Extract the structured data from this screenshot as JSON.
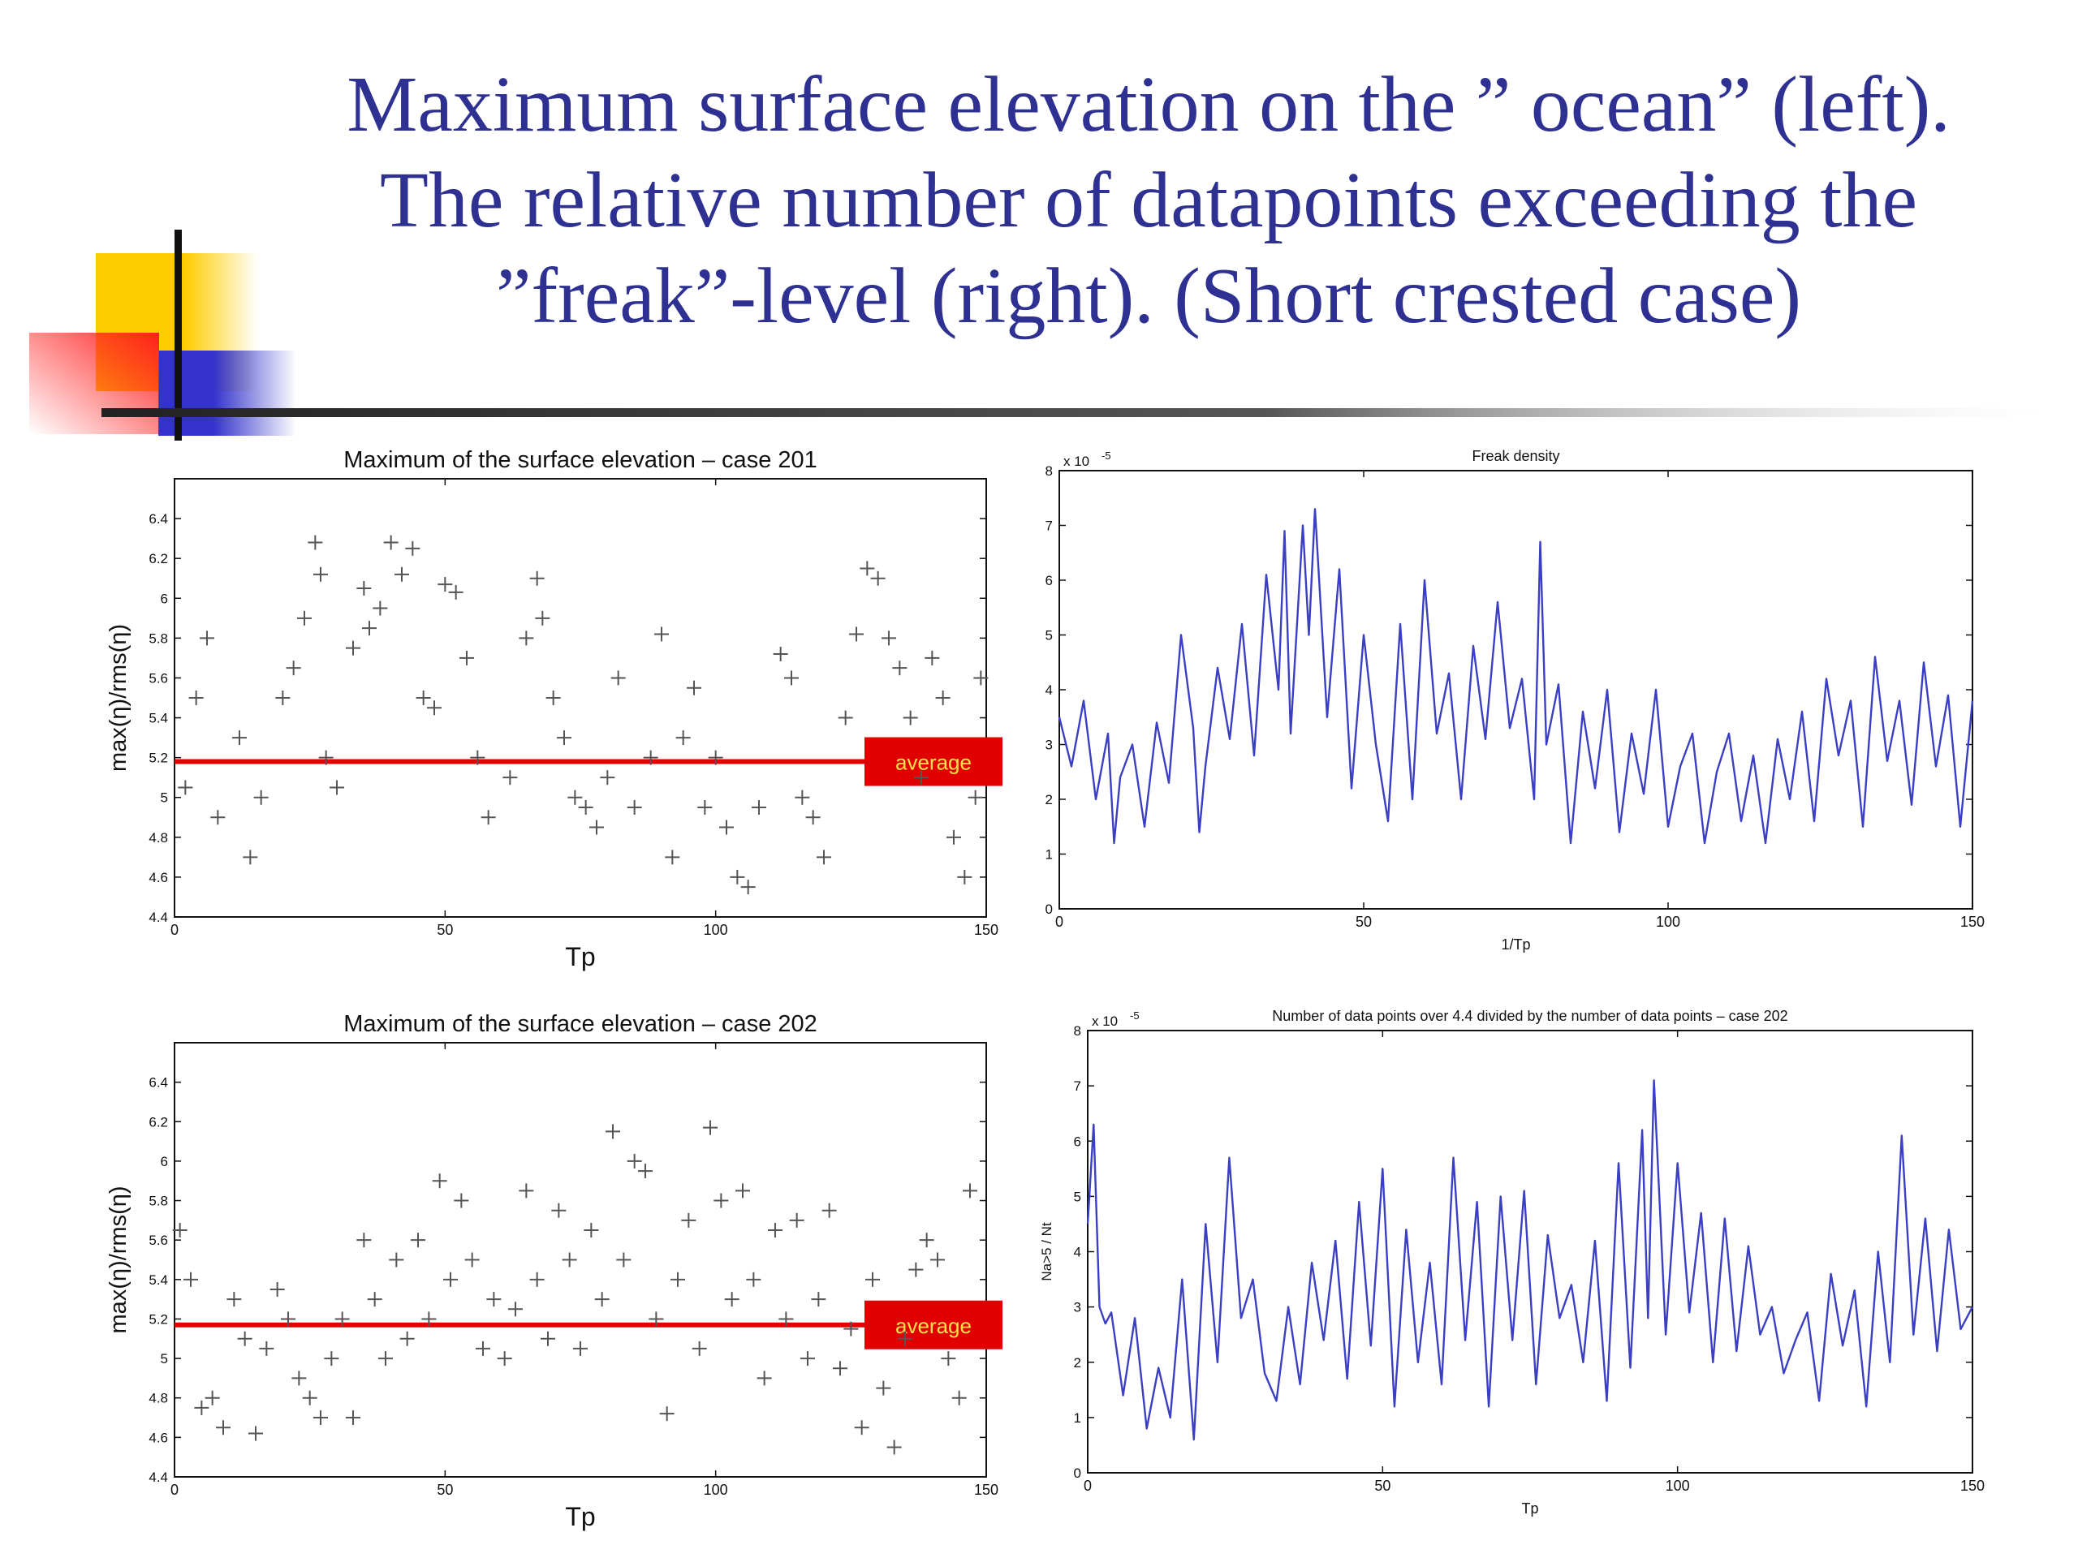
{
  "slide": {
    "title_lines": [
      "Maximum surface elevation on the ” ocean” (left).",
      "The relative number of datapoints exceeding the",
      "”freak”-level (right).   (Short crested case)"
    ],
    "title_color": "#2e3192"
  },
  "chart_data": [
    {
      "type": "scatter",
      "title": "Maximum of the surface elevation – case 201",
      "xlabel": "Tp",
      "ylabel": "max(η)/rms(η)",
      "xlim": [
        0,
        150
      ],
      "ylim": [
        4.4,
        6.6
      ],
      "xticks": [
        0,
        50,
        100,
        150
      ],
      "yticks": [
        4.4,
        4.6,
        4.8,
        5.0,
        5.2,
        5.4,
        5.6,
        5.8,
        6.0,
        6.2,
        6.4
      ],
      "ytick_labels": [
        "4.4",
        "4.6",
        "4.8",
        "5",
        "5.2",
        "5.4",
        "5.6",
        "5.8",
        "6",
        "6.2",
        "6.4"
      ],
      "marker": "+",
      "marker_color": "#555555",
      "average": 5.18,
      "average_color": "#e00000",
      "average_label": "average",
      "average_label_color": "#ffe14d",
      "points": [
        [
          2,
          5.05
        ],
        [
          4,
          5.5
        ],
        [
          6,
          5.8
        ],
        [
          8,
          4.9
        ],
        [
          12,
          5.3
        ],
        [
          14,
          4.7
        ],
        [
          16,
          5.0
        ],
        [
          20,
          5.5
        ],
        [
          22,
          5.65
        ],
        [
          24,
          5.9
        ],
        [
          26,
          6.28
        ],
        [
          27,
          6.12
        ],
        [
          28,
          5.2
        ],
        [
          30,
          5.05
        ],
        [
          33,
          5.75
        ],
        [
          35,
          6.05
        ],
        [
          36,
          5.85
        ],
        [
          38,
          5.95
        ],
        [
          40,
          6.28
        ],
        [
          42,
          6.12
        ],
        [
          44,
          6.25
        ],
        [
          46,
          5.5
        ],
        [
          48,
          5.45
        ],
        [
          50,
          6.07
        ],
        [
          52,
          6.03
        ],
        [
          54,
          5.7
        ],
        [
          56,
          5.2
        ],
        [
          58,
          4.9
        ],
        [
          62,
          5.1
        ],
        [
          65,
          5.8
        ],
        [
          67,
          6.1
        ],
        [
          68,
          5.9
        ],
        [
          70,
          5.5
        ],
        [
          72,
          5.3
        ],
        [
          74,
          5.0
        ],
        [
          76,
          4.95
        ],
        [
          78,
          4.85
        ],
        [
          80,
          5.1
        ],
        [
          82,
          5.6
        ],
        [
          85,
          4.95
        ],
        [
          88,
          5.2
        ],
        [
          90,
          5.82
        ],
        [
          92,
          4.7
        ],
        [
          94,
          5.3
        ],
        [
          96,
          5.55
        ],
        [
          98,
          4.95
        ],
        [
          100,
          5.2
        ],
        [
          102,
          4.85
        ],
        [
          104,
          4.6
        ],
        [
          106,
          4.55
        ],
        [
          108,
          4.95
        ],
        [
          112,
          5.72
        ],
        [
          114,
          5.6
        ],
        [
          116,
          5.0
        ],
        [
          118,
          4.9
        ],
        [
          120,
          4.7
        ],
        [
          124,
          5.4
        ],
        [
          126,
          5.82
        ],
        [
          128,
          6.15
        ],
        [
          130,
          6.1
        ],
        [
          132,
          5.8
        ],
        [
          134,
          5.65
        ],
        [
          136,
          5.4
        ],
        [
          138,
          5.1
        ],
        [
          140,
          5.7
        ],
        [
          142,
          5.5
        ],
        [
          144,
          4.8
        ],
        [
          146,
          4.6
        ],
        [
          148,
          5.0
        ],
        [
          149,
          5.6
        ]
      ]
    },
    {
      "type": "line",
      "title": "Freak density",
      "xlabel": "1/Tp",
      "ylabel": "",
      "xlim": [
        0,
        150
      ],
      "ylim": [
        0,
        8
      ],
      "xticks": [
        0,
        50,
        100,
        150
      ],
      "yticks": [
        0,
        1,
        2,
        3,
        4,
        5,
        6,
        7,
        8
      ],
      "exponent_label": "x 10",
      "exponent_power": "-5",
      "line_color": "#3b3fc4",
      "x": [
        0,
        2,
        4,
        6,
        8,
        9,
        10,
        12,
        14,
        16,
        18,
        20,
        22,
        23,
        24,
        26,
        28,
        30,
        32,
        34,
        36,
        37,
        38,
        40,
        41,
        42,
        44,
        46,
        48,
        50,
        52,
        54,
        56,
        58,
        60,
        62,
        64,
        66,
        68,
        70,
        72,
        74,
        76,
        78,
        79,
        80,
        82,
        84,
        86,
        88,
        90,
        92,
        94,
        96,
        98,
        100,
        102,
        104,
        106,
        108,
        110,
        112,
        114,
        116,
        118,
        120,
        122,
        124,
        126,
        128,
        130,
        132,
        134,
        136,
        138,
        140,
        142,
        144,
        146,
        148,
        150
      ],
      "y": [
        3.5,
        2.6,
        3.8,
        2.0,
        3.2,
        1.2,
        2.4,
        3.0,
        1.5,
        3.4,
        2.3,
        5.0,
        3.3,
        1.4,
        2.6,
        4.4,
        3.1,
        5.2,
        2.8,
        6.1,
        4.0,
        6.9,
        3.2,
        7.0,
        5.0,
        7.3,
        3.5,
        6.2,
        2.2,
        5.0,
        3.0,
        1.6,
        5.2,
        2.0,
        6.0,
        3.2,
        4.3,
        2.0,
        4.8,
        3.1,
        5.6,
        3.3,
        4.2,
        2.0,
        6.7,
        3.0,
        4.1,
        1.2,
        3.6,
        2.2,
        4.0,
        1.4,
        3.2,
        2.1,
        4.0,
        1.5,
        2.6,
        3.2,
        1.2,
        2.5,
        3.2,
        1.6,
        2.8,
        1.2,
        3.1,
        2.0,
        3.6,
        1.6,
        4.2,
        2.8,
        3.8,
        1.5,
        4.6,
        2.7,
        3.8,
        1.9,
        4.5,
        2.6,
        3.9,
        1.5,
        3.8
      ]
    },
    {
      "type": "scatter",
      "title": "Maximum of the surface elevation – case 202",
      "xlabel": "Tp",
      "ylabel": "max(η)/rms(η)",
      "xlim": [
        0,
        150
      ],
      "ylim": [
        4.4,
        6.6
      ],
      "xticks": [
        0,
        50,
        100,
        150
      ],
      "yticks": [
        4.4,
        4.6,
        4.8,
        5.0,
        5.2,
        5.4,
        5.6,
        5.8,
        6.0,
        6.2,
        6.4
      ],
      "ytick_labels": [
        "4.4",
        "4.6",
        "4.8",
        "5",
        "5.2",
        "5.4",
        "5.6",
        "5.8",
        "6",
        "6.2",
        "6.4"
      ],
      "marker": "+",
      "marker_color": "#555555",
      "average": 5.17,
      "average_color": "#e00000",
      "average_label": "average",
      "average_label_color": "#ffe14d",
      "points": [
        [
          1,
          5.65
        ],
        [
          3,
          5.4
        ],
        [
          5,
          4.75
        ],
        [
          7,
          4.8
        ],
        [
          9,
          4.65
        ],
        [
          11,
          5.3
        ],
        [
          13,
          5.1
        ],
        [
          15,
          4.62
        ],
        [
          17,
          5.05
        ],
        [
          19,
          5.35
        ],
        [
          21,
          5.2
        ],
        [
          23,
          4.9
        ],
        [
          25,
          4.8
        ],
        [
          27,
          4.7
        ],
        [
          29,
          5.0
        ],
        [
          31,
          5.2
        ],
        [
          33,
          4.7
        ],
        [
          35,
          5.6
        ],
        [
          37,
          5.3
        ],
        [
          39,
          5.0
        ],
        [
          41,
          5.5
        ],
        [
          43,
          5.1
        ],
        [
          45,
          5.6
        ],
        [
          47,
          5.2
        ],
        [
          49,
          5.9
        ],
        [
          51,
          5.4
        ],
        [
          53,
          5.8
        ],
        [
          55,
          5.5
        ],
        [
          57,
          5.05
        ],
        [
          59,
          5.3
        ],
        [
          61,
          5.0
        ],
        [
          63,
          5.25
        ],
        [
          65,
          5.85
        ],
        [
          67,
          5.4
        ],
        [
          69,
          5.1
        ],
        [
          71,
          5.75
        ],
        [
          73,
          5.5
        ],
        [
          75,
          5.05
        ],
        [
          77,
          5.65
        ],
        [
          79,
          5.3
        ],
        [
          81,
          6.15
        ],
        [
          83,
          5.5
        ],
        [
          85,
          6.0
        ],
        [
          87,
          5.95
        ],
        [
          89,
          5.2
        ],
        [
          91,
          4.72
        ],
        [
          93,
          5.4
        ],
        [
          95,
          5.7
        ],
        [
          97,
          5.05
        ],
        [
          99,
          6.17
        ],
        [
          101,
          5.8
        ],
        [
          103,
          5.3
        ],
        [
          105,
          5.85
        ],
        [
          107,
          5.4
        ],
        [
          109,
          4.9
        ],
        [
          111,
          5.65
        ],
        [
          113,
          5.2
        ],
        [
          115,
          5.7
        ],
        [
          117,
          5.0
        ],
        [
          119,
          5.3
        ],
        [
          121,
          5.75
        ],
        [
          123,
          4.95
        ],
        [
          125,
          5.15
        ],
        [
          127,
          4.65
        ],
        [
          129,
          5.4
        ],
        [
          131,
          4.85
        ],
        [
          133,
          4.55
        ],
        [
          135,
          5.1
        ],
        [
          137,
          5.45
        ],
        [
          139,
          5.6
        ],
        [
          141,
          5.5
        ],
        [
          143,
          5.0
        ],
        [
          145,
          4.8
        ],
        [
          147,
          5.85
        ]
      ]
    },
    {
      "type": "line",
      "title": "Number of data points over 4.4 divided by the number of data points – case 202",
      "xlabel": "Tp",
      "ylabel": "Na>5 / Nt",
      "xlim": [
        0,
        150
      ],
      "ylim": [
        0,
        8
      ],
      "xticks": [
        0,
        50,
        100,
        150
      ],
      "yticks": [
        0,
        1,
        2,
        3,
        4,
        5,
        6,
        7,
        8
      ],
      "exponent_label": "x 10",
      "exponent_power": "-5",
      "line_color": "#3b3fc4",
      "x": [
        0,
        1,
        2,
        3,
        4,
        6,
        8,
        10,
        12,
        14,
        16,
        18,
        20,
        22,
        24,
        26,
        28,
        30,
        32,
        34,
        36,
        38,
        40,
        42,
        44,
        46,
        48,
        50,
        52,
        54,
        56,
        58,
        60,
        62,
        64,
        66,
        68,
        70,
        72,
        74,
        76,
        78,
        80,
        82,
        84,
        86,
        88,
        90,
        92,
        94,
        95,
        96,
        98,
        100,
        102,
        104,
        106,
        108,
        110,
        112,
        114,
        116,
        118,
        120,
        122,
        124,
        126,
        128,
        130,
        132,
        134,
        136,
        138,
        140,
        142,
        144,
        146,
        148,
        150
      ],
      "y": [
        4.5,
        6.3,
        3.0,
        2.7,
        2.9,
        1.4,
        2.8,
        0.8,
        1.9,
        1.0,
        3.5,
        0.6,
        4.5,
        2.0,
        5.7,
        2.8,
        3.5,
        1.8,
        1.3,
        3.0,
        1.6,
        3.8,
        2.4,
        4.2,
        1.7,
        4.9,
        2.3,
        5.5,
        1.2,
        4.4,
        2.0,
        3.8,
        1.6,
        5.7,
        2.4,
        4.9,
        1.2,
        5.0,
        2.4,
        5.1,
        1.6,
        4.3,
        2.8,
        3.4,
        2.0,
        4.2,
        1.3,
        5.6,
        1.9,
        6.2,
        2.8,
        7.1,
        2.5,
        5.6,
        2.9,
        4.7,
        2.0,
        4.6,
        2.2,
        4.1,
        2.5,
        3.0,
        1.8,
        2.4,
        2.9,
        1.3,
        3.6,
        2.3,
        3.3,
        1.2,
        4.0,
        2.0,
        6.1,
        2.5,
        4.6,
        2.2,
        4.4,
        2.6,
        3.0
      ]
    }
  ]
}
